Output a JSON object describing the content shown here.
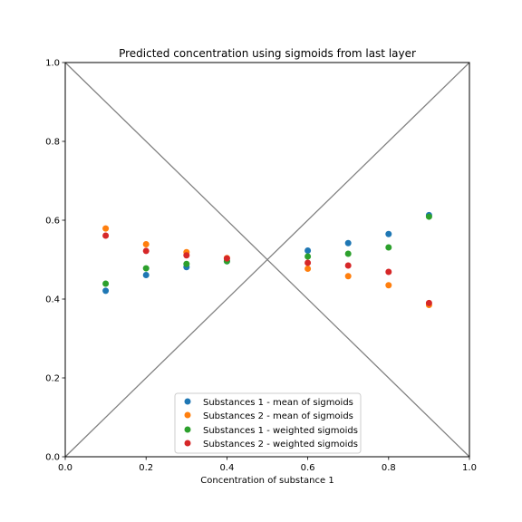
{
  "chart_data": {
    "type": "scatter",
    "title": "Predicted concentration using sigmoids from last layer",
    "xlabel": "Concentration of substance 1",
    "ylabel": "",
    "xlim": [
      0,
      1
    ],
    "ylim": [
      0,
      1
    ],
    "xticks": [
      "0.0",
      "0.2",
      "0.4",
      "0.6",
      "0.8",
      "1.0"
    ],
    "yticks": [
      "0.0",
      "0.2",
      "0.4",
      "0.6",
      "0.8",
      "1.0"
    ],
    "grid": false,
    "legend_position": "bottom-center",
    "reference_lines": [
      {
        "name": "diagonal-up",
        "x": [
          0,
          1
        ],
        "y": [
          0,
          1
        ],
        "color": "#808080"
      },
      {
        "name": "diagonal-down",
        "x": [
          0,
          1
        ],
        "y": [
          1,
          0
        ],
        "color": "#808080"
      }
    ],
    "series": [
      {
        "name": "Substances 1 - mean of sigmoids",
        "color": "#1f77b4",
        "x": [
          0.1,
          0.2,
          0.3,
          0.4,
          0.6,
          0.7,
          0.8,
          0.9
        ],
        "y": [
          0.421,
          0.461,
          0.481,
          0.496,
          0.523,
          0.542,
          0.565,
          0.613
        ]
      },
      {
        "name": "Substances 2 - mean of sigmoids",
        "color": "#ff7f0e",
        "x": [
          0.1,
          0.2,
          0.3,
          0.4,
          0.6,
          0.7,
          0.8,
          0.9
        ],
        "y": [
          0.579,
          0.539,
          0.519,
          0.504,
          0.477,
          0.458,
          0.435,
          0.385
        ]
      },
      {
        "name": "Substances 1 - weighted sigmoids",
        "color": "#2ca02c",
        "x": [
          0.1,
          0.2,
          0.3,
          0.4,
          0.6,
          0.7,
          0.8,
          0.9
        ],
        "y": [
          0.439,
          0.478,
          0.489,
          0.496,
          0.508,
          0.515,
          0.531,
          0.609
        ]
      },
      {
        "name": "Substances 2 - weighted sigmoids",
        "color": "#d62728",
        "x": [
          0.1,
          0.2,
          0.3,
          0.4,
          0.6,
          0.7,
          0.8,
          0.9
        ],
        "y": [
          0.561,
          0.522,
          0.511,
          0.503,
          0.492,
          0.485,
          0.469,
          0.39
        ]
      }
    ]
  }
}
